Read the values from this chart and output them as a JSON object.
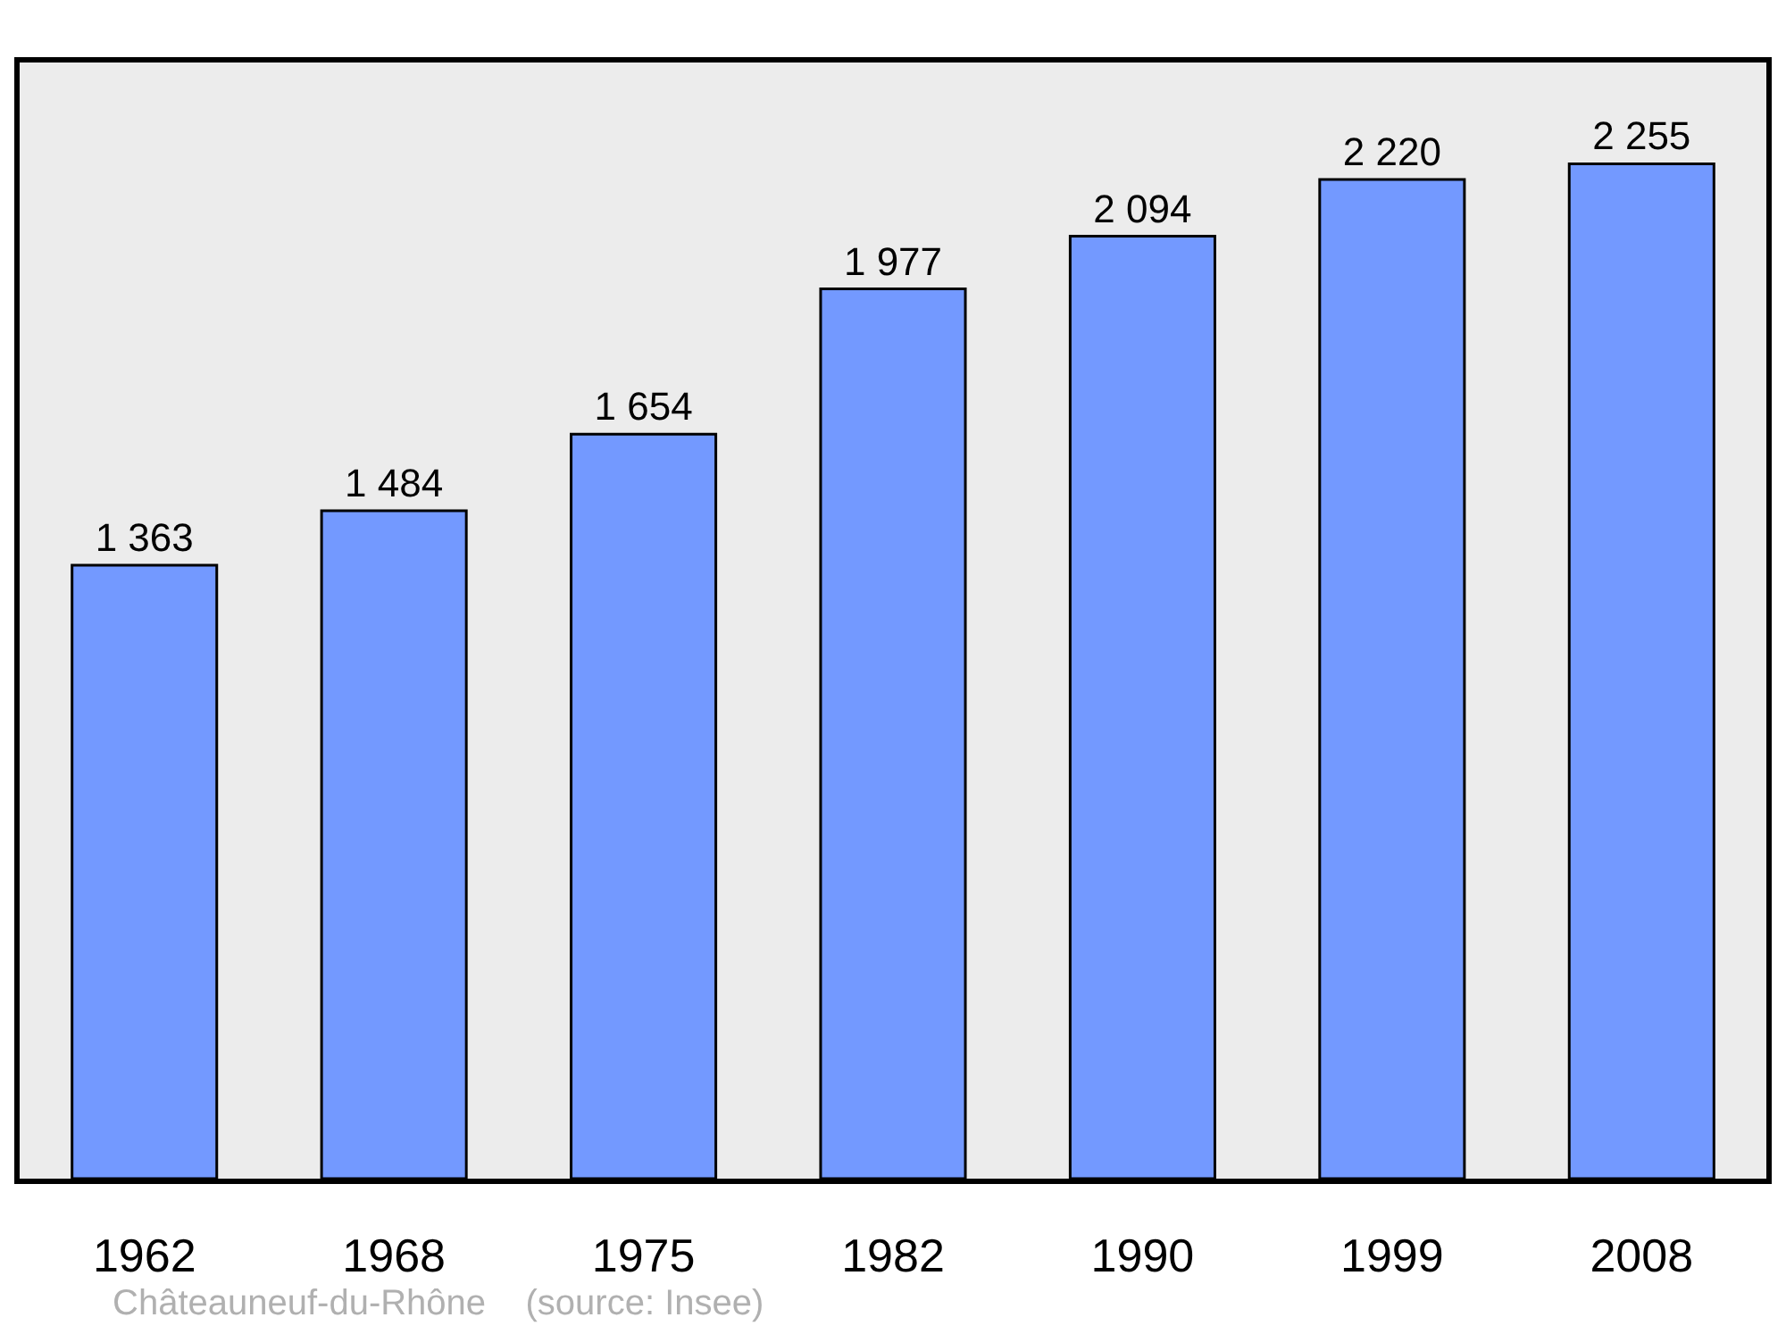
{
  "chart_data": {
    "type": "bar",
    "categories": [
      "1962",
      "1968",
      "1975",
      "1982",
      "1990",
      "1999",
      "2008"
    ],
    "values": [
      1363,
      1484,
      1654,
      1977,
      2094,
      2220,
      2255
    ],
    "value_labels": [
      "1 363",
      "1 484",
      "1 654",
      "1 977",
      "2 094",
      "2 220",
      "2 255"
    ],
    "color": "#7399ff",
    "ylim": [
      0,
      2480
    ],
    "grid": false,
    "legend": false,
    "annotations": [
      "Châteauneuf-du-Rhône    (source: Insee)"
    ]
  }
}
